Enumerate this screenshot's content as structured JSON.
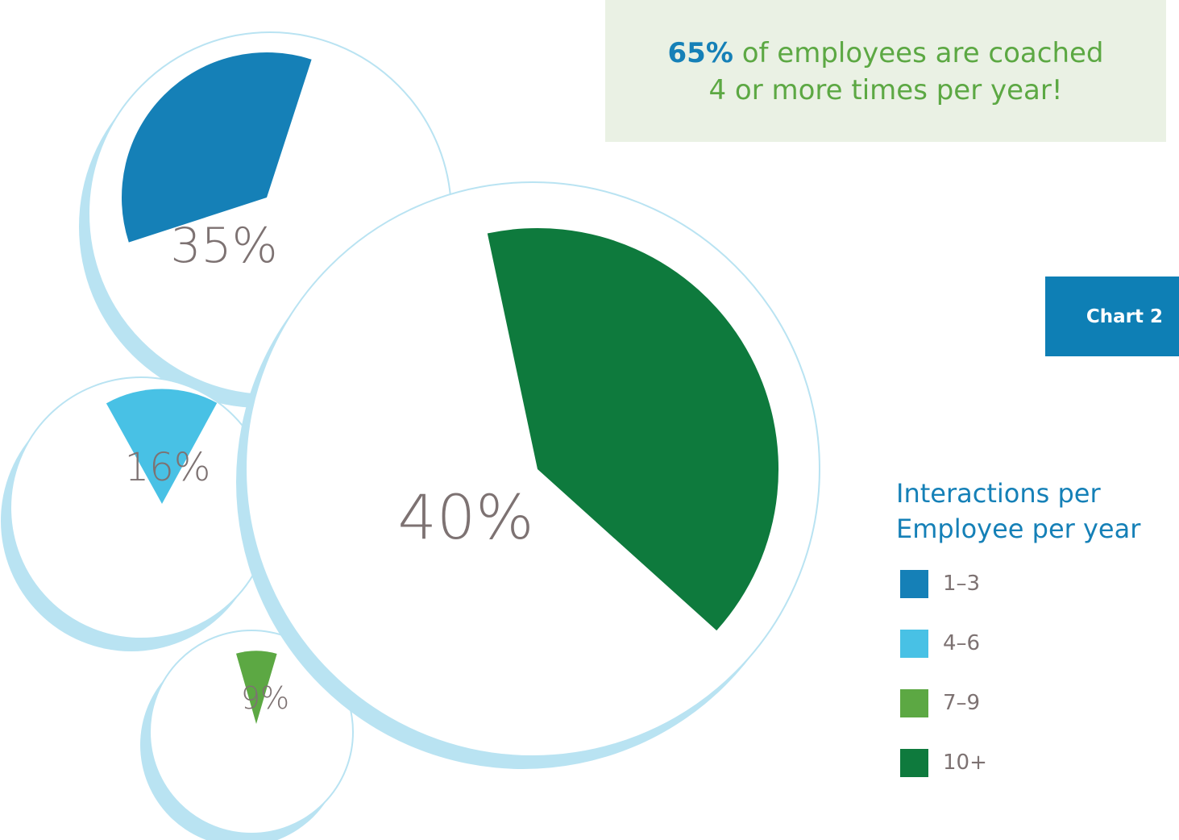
{
  "callout": {
    "highlight": "65%",
    "line1_rest": " of employees are coached",
    "line2": "4 or more times per year!"
  },
  "tab_label": "Chart 2",
  "legend": {
    "title_line1": "Interactions per",
    "title_line2": "Employee per year",
    "items": [
      {
        "label": "1–3",
        "color": "#1580b7"
      },
      {
        "label": "4–6",
        "color": "#48c1e5"
      },
      {
        "label": "7–9",
        "color": "#5ca843"
      },
      {
        "label": "10+",
        "color": "#0e7a3d"
      }
    ]
  },
  "chart_data": {
    "type": "pie",
    "categories": [
      "1–3",
      "4–6",
      "7–9",
      "10+"
    ],
    "values": [
      35,
      16,
      9,
      40
    ],
    "data_labels": [
      "35%",
      "16%",
      "9%",
      "40%"
    ],
    "colors": [
      "#1580b7",
      "#48c1e5",
      "#5ca843",
      "#0e7a3d"
    ],
    "legend_position": "right"
  }
}
